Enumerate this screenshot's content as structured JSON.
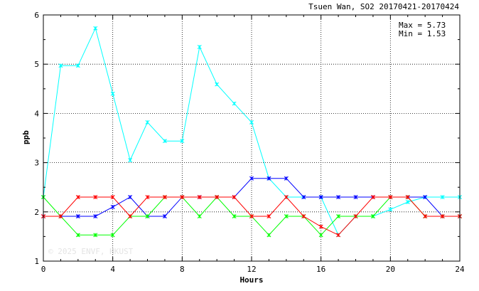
{
  "chart_data": {
    "type": "line",
    "title": "Tsuen Wan, SO2 20170421-20170424",
    "xlabel": "Hours",
    "ylabel": "ppb",
    "xlim": [
      0,
      24
    ],
    "ylim": [
      1,
      6
    ],
    "xticks": [
      0,
      4,
      8,
      12,
      16,
      20,
      24
    ],
    "yticks": [
      1,
      2,
      3,
      4,
      5,
      6
    ],
    "grid": true,
    "stats": {
      "max_label": "Max = 5.73",
      "min_label": "Min = 1.53"
    },
    "watermark": "© 2025  ENVF, HKUST",
    "series": [
      {
        "color": "#00ffff",
        "x": [
          0,
          1,
          2,
          3,
          4,
          5,
          6,
          7,
          8,
          9,
          10,
          11,
          12,
          13,
          14,
          15,
          16,
          17,
          18,
          19,
          20,
          21,
          22,
          23,
          24
        ],
        "y": [
          2.3,
          4.97,
          4.97,
          5.73,
          4.4,
          3.05,
          3.82,
          3.44,
          3.44,
          5.35,
          4.59,
          4.2,
          3.82,
          2.68,
          2.3,
          2.3,
          2.3,
          1.53,
          1.91,
          1.91,
          2.05,
          2.2,
          2.3,
          2.3,
          2.3
        ]
      },
      {
        "color": "#0000ff",
        "x": [
          0,
          1,
          2,
          3,
          4,
          5,
          6,
          7,
          8,
          9,
          10,
          11,
          12,
          13,
          14,
          15,
          16,
          17,
          18,
          19,
          20,
          21,
          22,
          23,
          24
        ],
        "y": [
          1.91,
          1.91,
          1.91,
          1.91,
          2.1,
          2.3,
          1.91,
          1.91,
          2.3,
          2.3,
          2.3,
          2.3,
          2.68,
          2.68,
          2.68,
          2.3,
          2.3,
          2.3,
          2.3,
          2.3,
          2.3,
          2.3,
          2.3,
          1.91,
          1.91
        ]
      },
      {
        "color": "#00ff00",
        "x": [
          0,
          1,
          2,
          3,
          4,
          5,
          6,
          7,
          8,
          9,
          10,
          11,
          12,
          13,
          14,
          15,
          16,
          17,
          18,
          19,
          20,
          21,
          22,
          23,
          24
        ],
        "y": [
          2.3,
          1.91,
          1.53,
          1.53,
          1.53,
          1.91,
          1.91,
          2.3,
          2.3,
          1.91,
          2.3,
          1.91,
          1.91,
          1.53,
          1.91,
          1.91,
          1.53,
          1.91,
          1.91,
          1.91,
          2.3,
          2.3,
          1.91,
          1.91,
          1.91
        ]
      },
      {
        "color": "#ff0000",
        "x": [
          0,
          1,
          2,
          3,
          4,
          5,
          6,
          7,
          8,
          9,
          10,
          11,
          12,
          13,
          14,
          15,
          16,
          17,
          18,
          19,
          20,
          21,
          22,
          23,
          24
        ],
        "y": [
          1.91,
          1.91,
          2.3,
          2.3,
          2.3,
          1.91,
          2.3,
          2.3,
          2.3,
          2.3,
          2.3,
          2.3,
          1.91,
          1.91,
          2.3,
          1.91,
          1.7,
          1.53,
          1.91,
          2.3,
          2.3,
          2.3,
          1.91,
          1.91,
          1.91
        ]
      }
    ]
  }
}
